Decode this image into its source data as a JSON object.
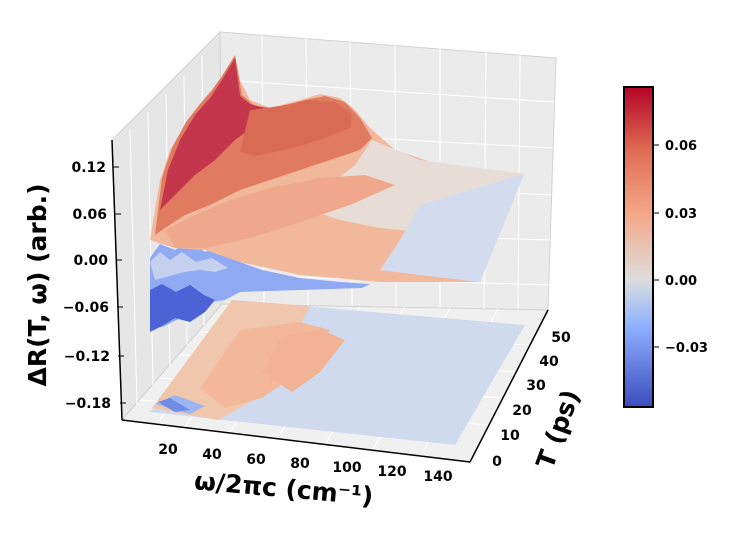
{
  "chart_data": {
    "type": "surface3d",
    "title": "",
    "xlabel": "ω/2πc (cm⁻¹)",
    "ylabel": "T (ps)",
    "zlabel": "ΔR(T, ω) (arb.)",
    "x_ticks": [
      "20",
      "40",
      "60",
      "80",
      "100",
      "120",
      "140"
    ],
    "y_ticks": [
      "0",
      "10",
      "20",
      "30",
      "40",
      "50"
    ],
    "z_ticks": [
      "0.12",
      "0.06",
      "0.00",
      "−0.06",
      "−0.12",
      "−0.18"
    ],
    "xlim": [
      5,
      150
    ],
    "ylim": [
      0,
      50
    ],
    "zlim": [
      -0.2,
      0.15
    ],
    "colormap": "coolwarm",
    "colorbar": {
      "range": [
        -0.055,
        0.082
      ],
      "ticks": [
        "0.06",
        "0.03",
        "0.00",
        "−0.03"
      ],
      "tick_values": [
        0.06,
        0.03,
        0.0,
        -0.03
      ]
    },
    "contour_offset": -0.19,
    "surface_profile": {
      "x": [
        5,
        10,
        15,
        20,
        30,
        40,
        50,
        60,
        70,
        80,
        90,
        100,
        110,
        120,
        130,
        140,
        150
      ],
      "peak_dR_at_T0": [
        -0.06,
        -0.03,
        0.0,
        0.04,
        0.055,
        0.05,
        0.055,
        0.06,
        0.065,
        0.065,
        0.055,
        0.04,
        0.03,
        0.02,
        0.012,
        0.008,
        0.005
      ],
      "dR_at_T50": [
        -0.01,
        -0.01,
        0.0,
        0.0,
        0.0,
        0.0,
        0.0,
        0.0,
        0.0,
        0.0,
        0.0,
        0.0,
        0.0,
        0.0,
        0.0,
        0.0,
        0.0
      ]
    }
  }
}
